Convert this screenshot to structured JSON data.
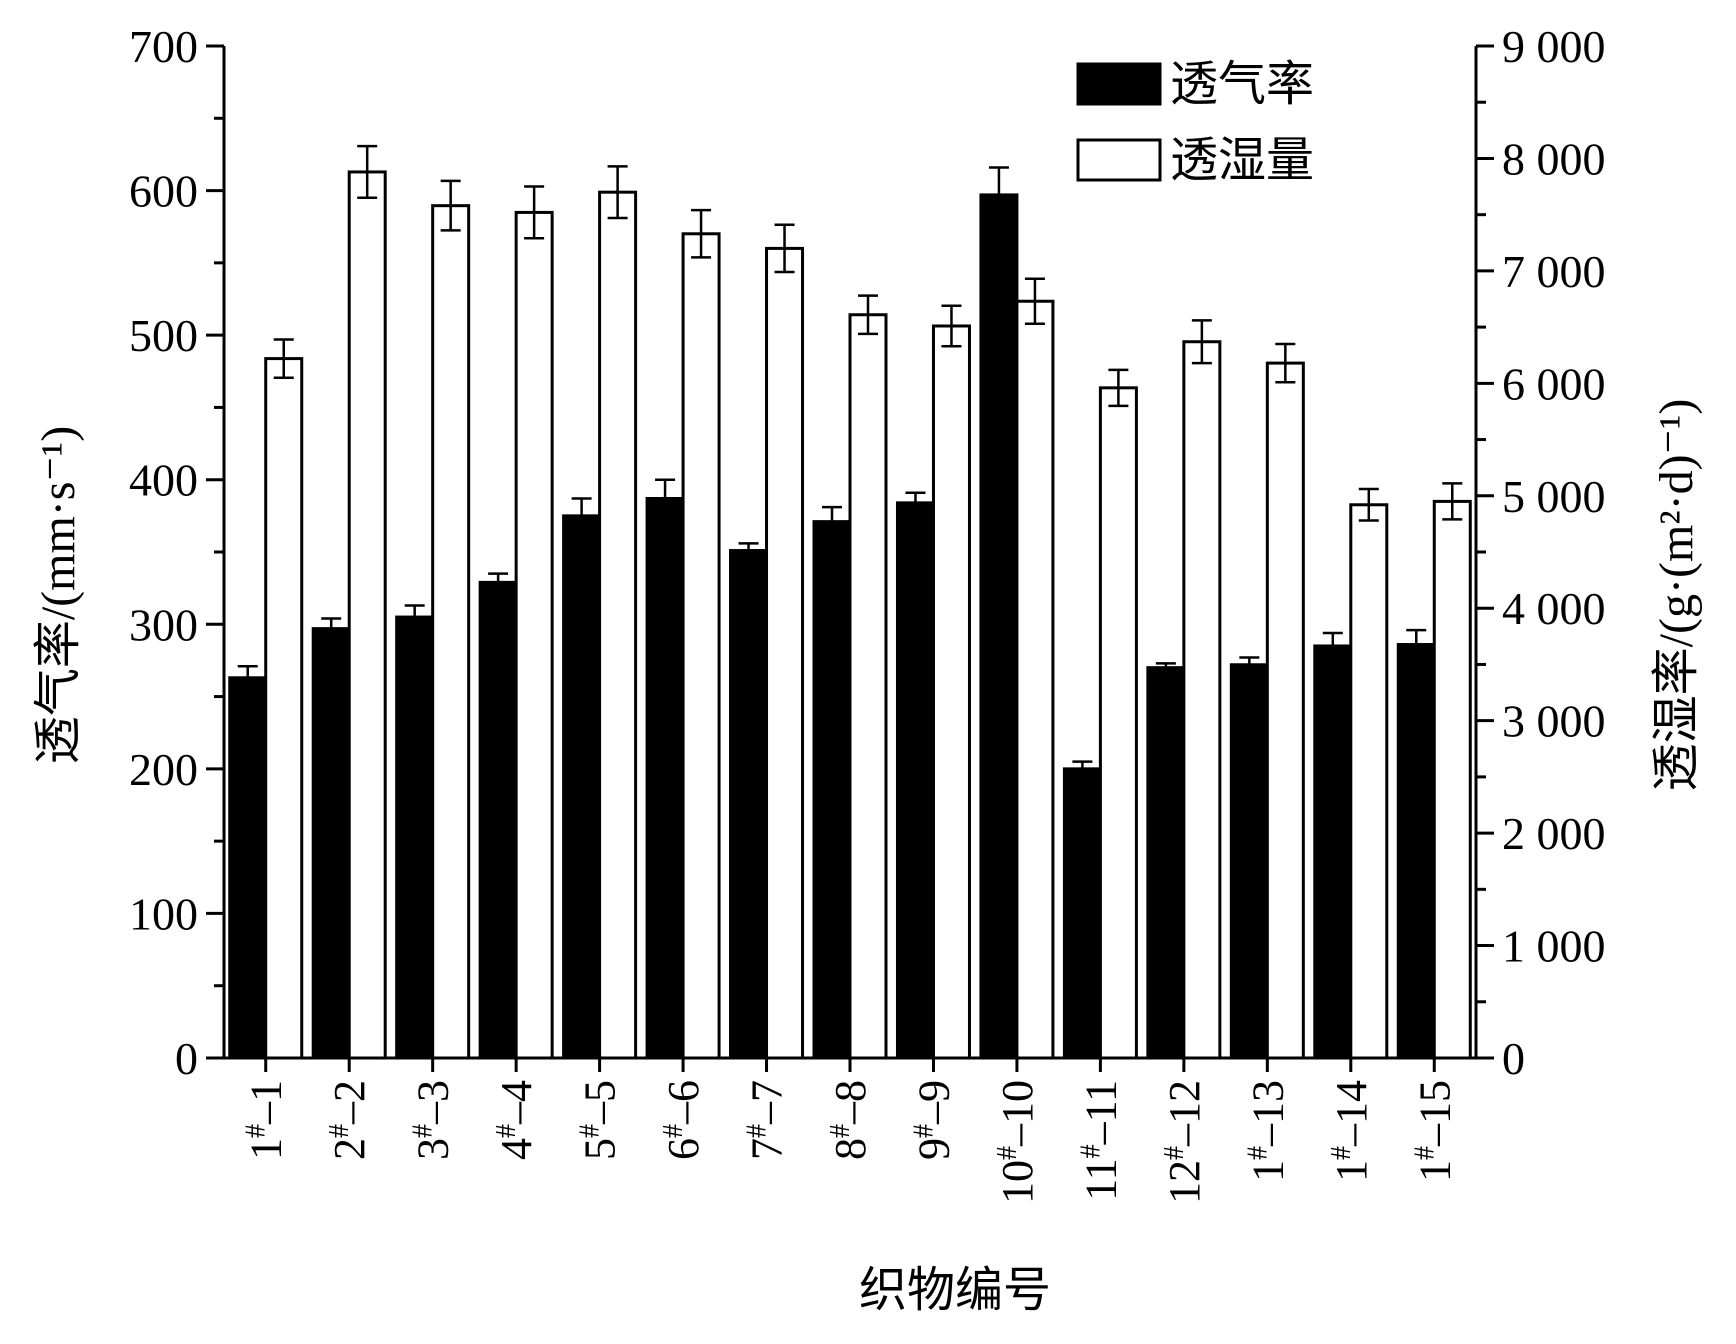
{
  "chart_data": {
    "type": "bar",
    "xlabel": "织物编号",
    "ylabel_left": "透气率/(mm·s⁻¹)",
    "ylabel_right": "透湿率/(g·(m²·d)⁻¹)",
    "ylim_left": [
      0,
      700
    ],
    "ylim_right": [
      0,
      9000
    ],
    "yticks_left": [
      "0",
      "100",
      "200",
      "300",
      "400",
      "500",
      "600",
      "700"
    ],
    "yticks_right": [
      "0",
      "1 000",
      "2 000",
      "3 000",
      "4 000",
      "5 000",
      "6 000",
      "7 000",
      "8 000",
      "9 000"
    ],
    "categories": [
      {
        "pre": "1",
        "post": "–1"
      },
      {
        "pre": "2",
        "post": "–2"
      },
      {
        "pre": "3",
        "post": "–3"
      },
      {
        "pre": "4",
        "post": "–4"
      },
      {
        "pre": "5",
        "post": "–5"
      },
      {
        "pre": "6",
        "post": "–6"
      },
      {
        "pre": "7",
        "post": "–7"
      },
      {
        "pre": "8",
        "post": "–8"
      },
      {
        "pre": "9",
        "post": "–9"
      },
      {
        "pre": "10",
        "post": "–10"
      },
      {
        "pre": "11",
        "post": "–11"
      },
      {
        "pre": "12",
        "post": "–12"
      },
      {
        "pre": "1",
        "post": "–13"
      },
      {
        "pre": "1",
        "post": "–14"
      },
      {
        "pre": "1",
        "post": "–15"
      }
    ],
    "category_superscript": "#",
    "series": [
      {
        "name": "透气率",
        "axis": "left",
        "fill": "#000000",
        "values": [
          263,
          297,
          305,
          329,
          375,
          387,
          351,
          371,
          384,
          597,
          200,
          270,
          272,
          285,
          286
        ],
        "errors": [
          8,
          7,
          8,
          6,
          12,
          13,
          5,
          10,
          7,
          19,
          5,
          3,
          5,
          9,
          10
        ]
      },
      {
        "name": "透湿量",
        "axis": "right",
        "fill": "#ffffff",
        "values": [
          6220,
          7880,
          7580,
          7520,
          7700,
          7330,
          7200,
          6610,
          6510,
          6730,
          5960,
          6370,
          6180,
          4920,
          4950
        ],
        "errors": [
          170,
          230,
          220,
          230,
          230,
          210,
          210,
          170,
          180,
          200,
          160,
          190,
          170,
          140,
          160
        ]
      }
    ],
    "legend_position": "top-right",
    "grid": false
  }
}
